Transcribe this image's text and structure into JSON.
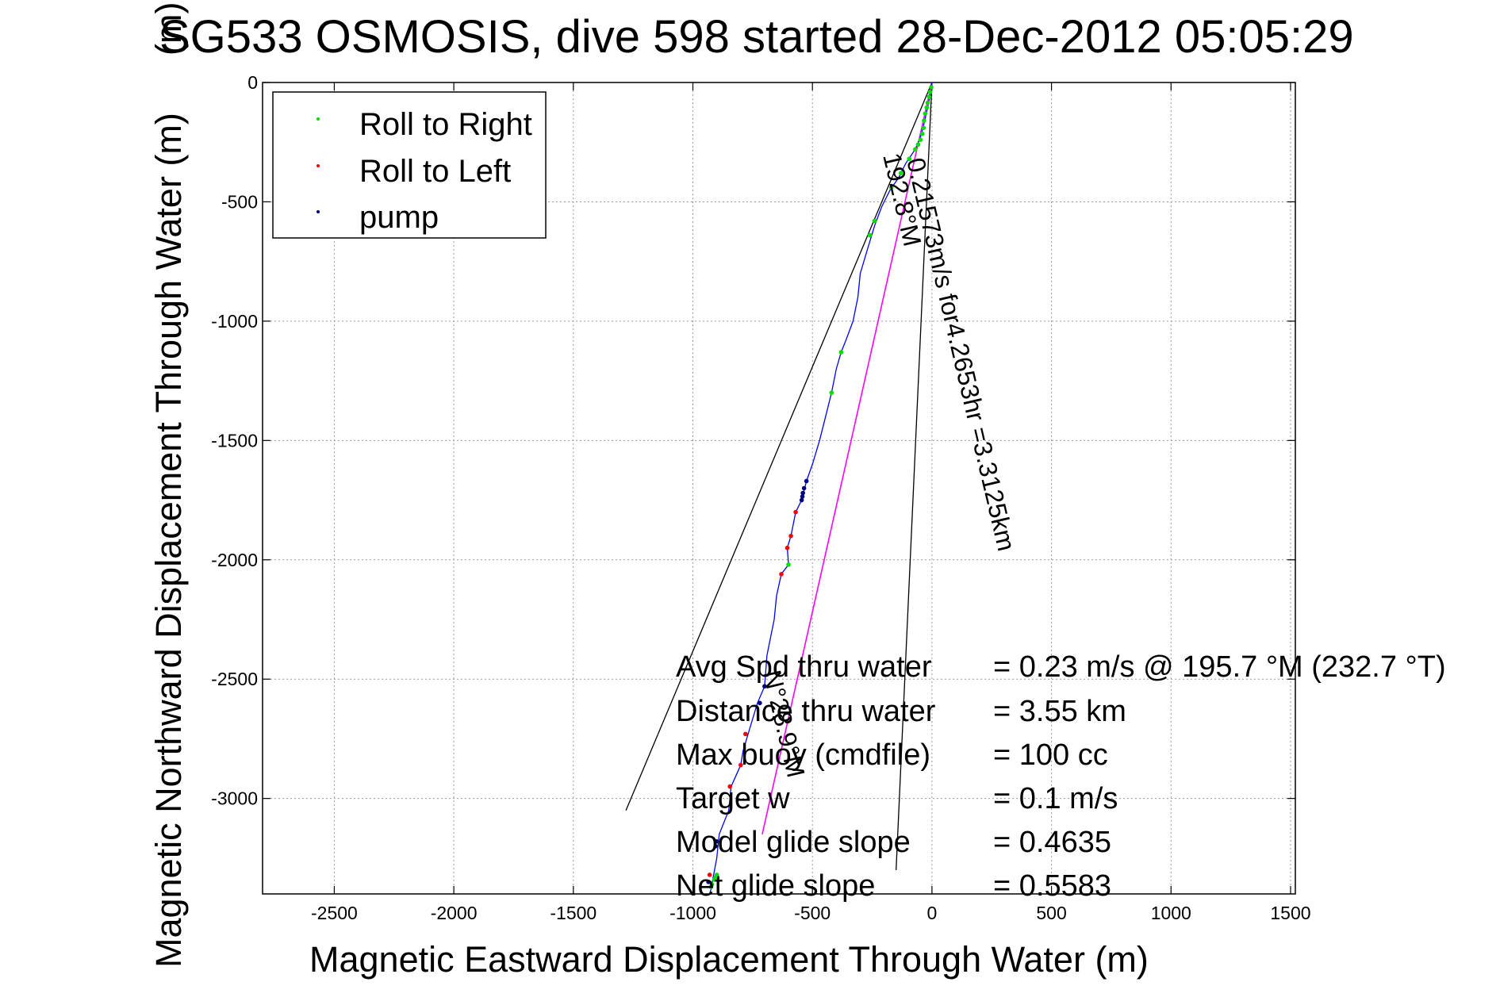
{
  "chart_data": {
    "type": "scatter",
    "title": "SG533 OSMOSIS, dive 598 started 28-Dec-2012 05:05:29",
    "xlabel": "Magnetic Eastward Displacement Through Water (m)",
    "ylabel": "Magnetic Northward Displacement Through Water (m)",
    "ylabel_suffix_overprint": "(m)",
    "xlim": [
      -2800,
      1520
    ],
    "ylim": [
      -3400,
      0
    ],
    "xticks": [
      -2500,
      -2000,
      -1500,
      -1000,
      -500,
      0,
      500,
      1000,
      1500
    ],
    "yticks": [
      0,
      -500,
      -1000,
      -1500,
      -2000,
      -2500,
      -3000
    ],
    "grid": true,
    "legend_position": "top-left",
    "colors": {
      "track": "#0000ff",
      "roll_right": "#00dd00",
      "roll_left": "#ff0000",
      "pump": "#000080",
      "current_line": "#ff00ff",
      "heading_lines": "#000000"
    },
    "series": [
      {
        "name": "Roll to Right",
        "points": [
          [
            -3,
            -20
          ],
          [
            -8,
            -40
          ],
          [
            -12,
            -60
          ],
          [
            -18,
            -85
          ],
          [
            -22,
            -105
          ],
          [
            -28,
            -130
          ],
          [
            -33,
            -160
          ],
          [
            -35,
            -190
          ],
          [
            -40,
            -215
          ],
          [
            -48,
            -240
          ],
          [
            -58,
            -260
          ],
          [
            -70,
            -280
          ],
          [
            -95,
            -320
          ],
          [
            -130,
            -380
          ],
          [
            -170,
            -440
          ],
          [
            -240,
            -580
          ],
          [
            -260,
            -640
          ],
          [
            -380,
            -1130
          ],
          [
            -420,
            -1300
          ],
          [
            -600,
            -2020
          ],
          [
            -900,
            -3320
          ],
          [
            -905,
            -3330
          ],
          [
            -910,
            -3340
          ],
          [
            -920,
            -3360
          ],
          [
            -924,
            -3370
          ]
        ]
      },
      {
        "name": "Roll to Left",
        "points": [
          [
            -570,
            -1800
          ],
          [
            -590,
            -1900
          ],
          [
            -605,
            -1950
          ],
          [
            -630,
            -2060
          ],
          [
            -780,
            -2730
          ],
          [
            -800,
            -2860
          ],
          [
            -845,
            -2950
          ],
          [
            -930,
            -3320
          ]
        ]
      },
      {
        "name": "pump",
        "points": [
          [
            -525,
            -1670
          ],
          [
            -535,
            -1700
          ],
          [
            -540,
            -1720
          ],
          [
            -542,
            -1735
          ],
          [
            -545,
            -1750
          ],
          [
            -700,
            -2530
          ],
          [
            -720,
            -2600
          ],
          [
            -900,
            -3180
          ],
          [
            -905,
            -3200
          ],
          [
            -935,
            -3350
          ]
        ]
      }
    ],
    "track": [
      [
        0,
        0
      ],
      [
        -5,
        -40
      ],
      [
        -15,
        -90
      ],
      [
        -30,
        -160
      ],
      [
        -45,
        -220
      ],
      [
        -70,
        -280
      ],
      [
        -110,
        -340
      ],
      [
        -140,
        -400
      ],
      [
        -175,
        -450
      ],
      [
        -210,
        -520
      ],
      [
        -240,
        -600
      ],
      [
        -270,
        -700
      ],
      [
        -300,
        -800
      ],
      [
        -310,
        -900
      ],
      [
        -330,
        -1000
      ],
      [
        -360,
        -1080
      ],
      [
        -380,
        -1130
      ],
      [
        -400,
        -1200
      ],
      [
        -410,
        -1250
      ],
      [
        -420,
        -1300
      ],
      [
        -445,
        -1400
      ],
      [
        -470,
        -1500
      ],
      [
        -500,
        -1600
      ],
      [
        -525,
        -1670
      ],
      [
        -545,
        -1750
      ],
      [
        -570,
        -1800
      ],
      [
        -590,
        -1900
      ],
      [
        -605,
        -1950
      ],
      [
        -600,
        -2020
      ],
      [
        -630,
        -2060
      ],
      [
        -650,
        -2150
      ],
      [
        -660,
        -2250
      ],
      [
        -690,
        -2400
      ],
      [
        -700,
        -2530
      ],
      [
        -730,
        -2600
      ],
      [
        -760,
        -2700
      ],
      [
        -790,
        -2800
      ],
      [
        -800,
        -2860
      ],
      [
        -840,
        -2950
      ],
      [
        -850,
        -3050
      ],
      [
        -890,
        -3150
      ],
      [
        -900,
        -3250
      ],
      [
        -915,
        -3330
      ],
      [
        -924,
        -3380
      ],
      [
        -930,
        -3400
      ]
    ],
    "heading_lines": [
      [
        [
          0,
          0
        ],
        [
          -1280,
          -3050
        ]
      ],
      [
        [
          0,
          0
        ],
        [
          -150,
          -3300
        ]
      ]
    ],
    "current_line": [
      [
        0,
        0
      ],
      [
        -710,
        -3150
      ]
    ],
    "annotations": {
      "current_text": "0.21573m/s for4.2653hr =3.3125km",
      "heading_text": "192.8°M",
      "current_heading_text": "N°28.9°M"
    },
    "stats": [
      {
        "label": "Avg Spd thru water",
        "value": "=  0.23 m/s @ 195.7 °M (232.7 °T)"
      },
      {
        "label": "Distance thru water",
        "value": "=  3.55 km"
      },
      {
        "label": "Max buoy (cmdfile)",
        "value": "= 100 cc"
      },
      {
        "label": "Target w",
        "value": "= 0.1 m/s"
      },
      {
        "label": "Model glide slope",
        "value": "= 0.4635"
      },
      {
        "label": "Net glide slope",
        "value": "= 0.5583"
      }
    ]
  }
}
